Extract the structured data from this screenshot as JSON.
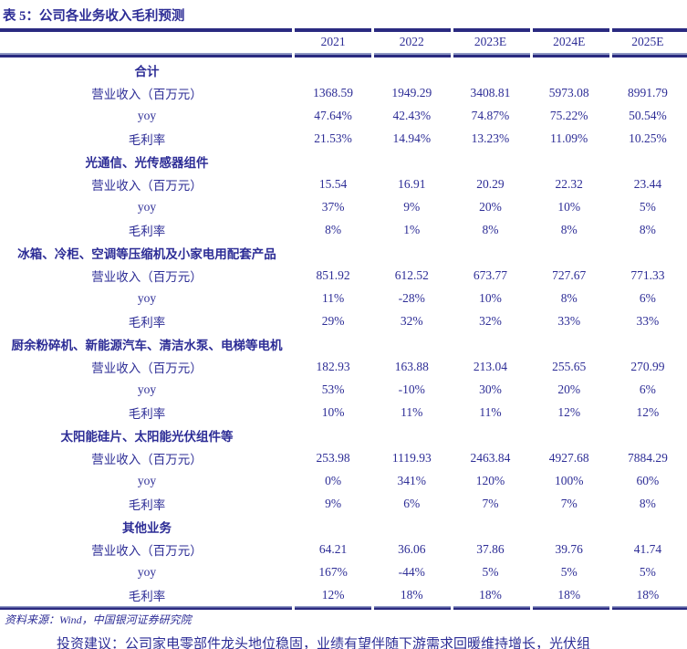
{
  "page": {
    "title": "表 5：公司各业务收入毛利预测",
    "source_note": "资料来源：Wind，中国银河证券研究院",
    "clipped_paragraph": "投资建议：公司家电零部件龙头地位稳固，业绩有望伴随下游需求回暖维持增长，光伏组"
  },
  "colors": {
    "ink": "#2d2d96",
    "rule": "#2a2a80",
    "rule_light": "#8d97c3",
    "background": "#ffffff"
  },
  "table": {
    "columns": [
      "2021",
      "2022",
      "2023E",
      "2024E",
      "2025E"
    ],
    "sections": [
      {
        "header": "合计",
        "rows": [
          {
            "label": "营业收入（百万元）",
            "values": [
              "1368.59",
              "1949.29",
              "3408.81",
              "5973.08",
              "8991.79"
            ]
          },
          {
            "label": "yoy",
            "values": [
              "47.64%",
              "42.43%",
              "74.87%",
              "75.22%",
              "50.54%"
            ]
          },
          {
            "label": "毛利率",
            "values": [
              "21.53%",
              "14.94%",
              "13.23%",
              "11.09%",
              "10.25%"
            ]
          }
        ]
      },
      {
        "header": "光通信、光传感器组件",
        "rows": [
          {
            "label": "营业收入（百万元）",
            "values": [
              "15.54",
              "16.91",
              "20.29",
              "22.32",
              "23.44"
            ]
          },
          {
            "label": "yoy",
            "values": [
              "37%",
              "9%",
              "20%",
              "10%",
              "5%"
            ]
          },
          {
            "label": "毛利率",
            "values": [
              "8%",
              "1%",
              "8%",
              "8%",
              "8%"
            ]
          }
        ]
      },
      {
        "header": "冰箱、冷柜、空调等压缩机及小家电用配套产品",
        "rows": [
          {
            "label": "营业收入（百万元）",
            "values": [
              "851.92",
              "612.52",
              "673.77",
              "727.67",
              "771.33"
            ]
          },
          {
            "label": "yoy",
            "values": [
              "11%",
              "-28%",
              "10%",
              "8%",
              "6%"
            ]
          },
          {
            "label": "毛利率",
            "values": [
              "29%",
              "32%",
              "32%",
              "33%",
              "33%"
            ]
          }
        ]
      },
      {
        "header": "厨余粉碎机、新能源汽车、清洁水泵、电梯等电机",
        "rows": [
          {
            "label": "营业收入（百万元）",
            "values": [
              "182.93",
              "163.88",
              "213.04",
              "255.65",
              "270.99"
            ]
          },
          {
            "label": "yoy",
            "values": [
              "53%",
              "-10%",
              "30%",
              "20%",
              "6%"
            ]
          },
          {
            "label": "毛利率",
            "values": [
              "10%",
              "11%",
              "11%",
              "12%",
              "12%"
            ]
          }
        ]
      },
      {
        "header": "太阳能硅片、太阳能光伏组件等",
        "rows": [
          {
            "label": "营业收入（百万元）",
            "values": [
              "253.98",
              "1119.93",
              "2463.84",
              "4927.68",
              "7884.29"
            ]
          },
          {
            "label": "yoy",
            "values": [
              "0%",
              "341%",
              "120%",
              "100%",
              "60%"
            ]
          },
          {
            "label": "毛利率",
            "values": [
              "9%",
              "6%",
              "7%",
              "7%",
              "8%"
            ]
          }
        ]
      },
      {
        "header": "其他业务",
        "rows": [
          {
            "label": "营业收入（百万元）",
            "values": [
              "64.21",
              "36.06",
              "37.86",
              "39.76",
              "41.74"
            ]
          },
          {
            "label": "yoy",
            "values": [
              "167%",
              "-44%",
              "5%",
              "5%",
              "5%"
            ]
          },
          {
            "label": "毛利率",
            "values": [
              "12%",
              "18%",
              "18%",
              "18%",
              "18%"
            ]
          }
        ]
      }
    ]
  }
}
